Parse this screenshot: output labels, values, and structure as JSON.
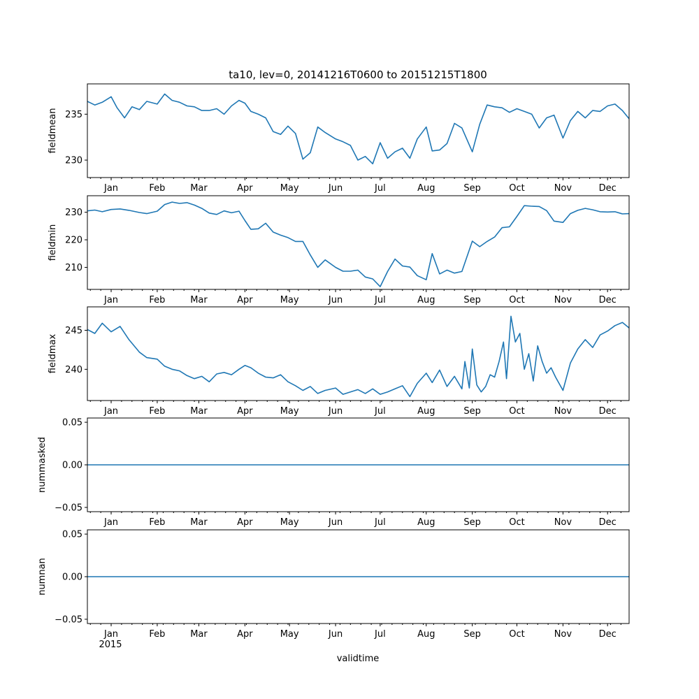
{
  "colors": {
    "series": "#1f77b4"
  },
  "chart_data": {
    "type": "line",
    "title": "ta10, lev=0, 20141216T0600 to 20151215T1800",
    "xlabel": "validtime",
    "year_label": "2015",
    "x_range": [
      "2014-12-16T06:00",
      "2015-12-15T18:00"
    ],
    "month_ticks": [
      {
        "label": "Jan",
        "day": 16
      },
      {
        "label": "Feb",
        "day": 47
      },
      {
        "label": "Mar",
        "day": 75
      },
      {
        "label": "Apr",
        "day": 106
      },
      {
        "label": "May",
        "day": 136
      },
      {
        "label": "Jun",
        "day": 167
      },
      {
        "label": "Jul",
        "day": 197
      },
      {
        "label": "Aug",
        "day": 228
      },
      {
        "label": "Sep",
        "day": 259
      },
      {
        "label": "Oct",
        "day": 289
      },
      {
        "label": "Nov",
        "day": 320
      },
      {
        "label": "Dec",
        "day": 350
      }
    ],
    "x_domain_days": [
      0,
      364.5
    ],
    "panels": [
      {
        "ylabel": "fieldmean",
        "ylim": [
          228.1,
          238.3
        ],
        "yticks": [
          230,
          235
        ],
        "ytick_labels": [
          "230",
          "235"
        ],
        "x_days": [
          0,
          5,
          10,
          16,
          20,
          25,
          30,
          35,
          40,
          47,
          52,
          57,
          62,
          67,
          72,
          77,
          82,
          87,
          92,
          97,
          102,
          106,
          110,
          115,
          120,
          125,
          130,
          135,
          140,
          145,
          150,
          155,
          160,
          167,
          172,
          177,
          182,
          187,
          192,
          197,
          202,
          207,
          212,
          217,
          222,
          228,
          232,
          237,
          242,
          247,
          252,
          259,
          264,
          269,
          274,
          279,
          284,
          289,
          294,
          299,
          304,
          309,
          314,
          320,
          325,
          330,
          335,
          340,
          345,
          350,
          355,
          360,
          364.5
        ],
        "values": [
          236.4,
          236.0,
          236.3,
          236.9,
          235.7,
          234.6,
          235.8,
          235.5,
          236.4,
          236.1,
          237.2,
          236.5,
          236.3,
          235.9,
          235.8,
          235.4,
          235.4,
          235.6,
          235.0,
          235.9,
          236.5,
          236.2,
          235.3,
          235.0,
          234.6,
          233.1,
          232.8,
          233.7,
          232.9,
          230.1,
          230.8,
          233.6,
          233.0,
          232.3,
          232.0,
          231.6,
          230.0,
          230.4,
          229.6,
          231.9,
          230.2,
          230.9,
          231.3,
          230.2,
          232.3,
          233.6,
          231.0,
          231.1,
          231.8,
          234.0,
          233.5,
          230.9,
          233.9,
          236.0,
          235.8,
          235.7,
          235.2,
          235.6,
          235.3,
          235.0,
          233.5,
          234.6,
          234.9,
          232.4,
          234.3,
          235.3,
          234.6,
          235.4,
          235.3,
          235.9,
          236.1,
          235.4,
          234.5
        ]
      },
      {
        "ylabel": "fieldmin",
        "ylim": [
          202.0,
          236.0
        ],
        "yticks": [
          210,
          220,
          230
        ],
        "ytick_labels": [
          "210",
          "220",
          "230"
        ],
        "x_days": [
          0,
          5,
          10,
          16,
          22,
          28,
          35,
          40,
          47,
          52,
          57,
          62,
          67,
          72,
          77,
          82,
          87,
          92,
          97,
          102,
          106,
          110,
          115,
          120,
          125,
          130,
          135,
          140,
          145,
          150,
          155,
          160,
          167,
          172,
          177,
          182,
          187,
          192,
          197,
          202,
          207,
          212,
          217,
          222,
          228,
          232,
          237,
          242,
          247,
          252,
          259,
          264,
          269,
          274,
          279,
          284,
          289,
          294,
          299,
          304,
          309,
          314,
          320,
          325,
          330,
          335,
          340,
          345,
          350,
          355,
          360,
          364.5
        ],
        "values": [
          230.5,
          230.8,
          230.2,
          231.0,
          231.2,
          230.7,
          229.9,
          229.5,
          230.4,
          232.8,
          233.7,
          233.2,
          233.5,
          232.6,
          231.4,
          229.7,
          229.2,
          230.5,
          229.8,
          230.4,
          227.0,
          223.8,
          224.0,
          226.0,
          222.8,
          221.7,
          220.8,
          219.4,
          219.4,
          214.5,
          210.0,
          212.7,
          210.0,
          208.6,
          208.6,
          209.0,
          206.5,
          205.8,
          203.0,
          208.5,
          213.0,
          210.5,
          210.1,
          207.0,
          205.5,
          215.0,
          207.6,
          209.0,
          207.9,
          208.5,
          219.5,
          217.5,
          219.4,
          221.0,
          224.4,
          224.7,
          228.5,
          232.4,
          232.2,
          232.1,
          230.6,
          226.8,
          226.3,
          229.5,
          230.7,
          231.4,
          230.9,
          230.2,
          230.1,
          230.2,
          229.4,
          229.5
        ]
      },
      {
        "ylabel": "fieldmax",
        "ylim": [
          236.0,
          248.0
        ],
        "yticks": [
          240,
          245
        ],
        "ytick_labels": [
          "240",
          "245"
        ],
        "x_days": [
          0,
          5,
          10,
          16,
          22,
          28,
          35,
          40,
          47,
          52,
          57,
          62,
          67,
          72,
          77,
          82,
          87,
          92,
          97,
          102,
          106,
          110,
          115,
          120,
          125,
          130,
          135,
          140,
          145,
          150,
          155,
          160,
          167,
          172,
          177,
          182,
          187,
          192,
          197,
          202,
          207,
          212,
          217,
          222,
          228,
          232,
          237,
          242,
          247,
          252,
          254,
          257,
          259,
          262,
          265,
          268,
          271,
          274,
          277,
          280,
          282,
          285,
          288,
          291,
          294,
          297,
          300,
          303,
          306,
          309,
          312,
          315,
          320,
          325,
          330,
          335,
          340,
          345,
          350,
          355,
          360,
          364.5
        ],
        "values": [
          245.1,
          244.6,
          245.9,
          244.8,
          245.5,
          243.8,
          242.2,
          241.5,
          241.3,
          240.4,
          240.0,
          239.8,
          239.2,
          238.8,
          239.1,
          238.4,
          239.4,
          239.6,
          239.3,
          240.0,
          240.5,
          240.2,
          239.5,
          239.0,
          238.9,
          239.3,
          238.4,
          237.9,
          237.3,
          237.8,
          236.9,
          237.3,
          237.6,
          236.8,
          237.1,
          237.4,
          236.9,
          237.5,
          236.8,
          237.1,
          237.5,
          237.9,
          236.5,
          238.2,
          239.5,
          238.3,
          239.9,
          237.8,
          239.1,
          237.5,
          241.0,
          237.6,
          242.6,
          238.0,
          237.1,
          237.8,
          239.3,
          239.0,
          241.0,
          243.5,
          238.8,
          246.8,
          243.5,
          244.6,
          240.0,
          242.0,
          238.5,
          243.0,
          241.0,
          239.5,
          240.2,
          239.0,
          237.3,
          240.8,
          242.6,
          243.8,
          242.8,
          244.4,
          244.9,
          245.6,
          246.0,
          245.3
        ]
      },
      {
        "ylabel": "nummasked",
        "ylim": [
          -0.055,
          0.055
        ],
        "yticks": [
          -0.05,
          0.0,
          0.05
        ],
        "ytick_labels": [
          "−0.05",
          "0.00",
          "0.05"
        ],
        "x_days": [
          0,
          364.5
        ],
        "values": [
          0,
          0
        ]
      },
      {
        "ylabel": "numnan",
        "ylim": [
          -0.055,
          0.055
        ],
        "yticks": [
          -0.05,
          0.0,
          0.05
        ],
        "ytick_labels": [
          "−0.05",
          "0.00",
          "0.05"
        ],
        "x_days": [
          0,
          364.5
        ],
        "values": [
          0,
          0
        ]
      }
    ]
  }
}
